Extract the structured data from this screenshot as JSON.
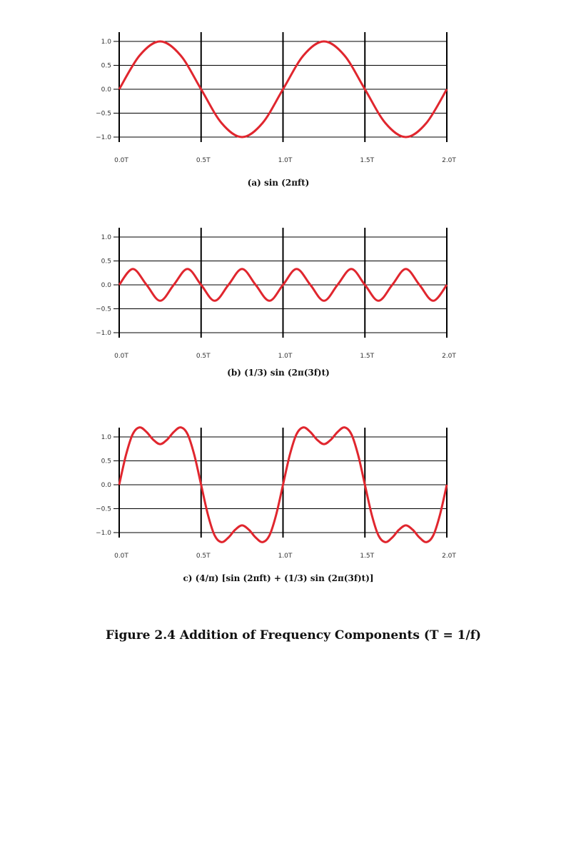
{
  "colors": {
    "curve": "#e0262e",
    "grid": "#000000"
  },
  "figure_title": "Figure 2.4 Addition of Frequency Components (T = 1/f)",
  "chart_data": [
    {
      "type": "line",
      "name": "panel-a",
      "caption": "(a) sin (2πft)",
      "xlim": [
        0,
        2
      ],
      "ylim": [
        -1,
        1
      ],
      "x_ticks": [
        0,
        0.5,
        1,
        1.5,
        2
      ],
      "x_tick_labels": [
        "0.0T",
        "0.5T",
        "1.0T",
        "1.5T",
        "2.0T"
      ],
      "y_ticks": [
        1,
        0.5,
        0,
        -0.5,
        -1
      ],
      "y_tick_labels": [
        "1.0",
        "0.5",
        "0.0",
        "−0.5",
        "−1.0"
      ],
      "grid": true,
      "series": [
        {
          "x": [
            0,
            0.125,
            0.25,
            0.375,
            0.5,
            0.625,
            0.75,
            0.875,
            1,
            1.125,
            1.25,
            1.375,
            1.5,
            1.625,
            1.75,
            1.875,
            2
          ],
          "y": [
            0,
            0.707,
            1,
            0.707,
            0,
            -0.707,
            -1,
            -0.707,
            0,
            0.707,
            1,
            0.707,
            0,
            -0.707,
            -1,
            -0.707,
            0
          ]
        }
      ]
    },
    {
      "type": "line",
      "name": "panel-b",
      "caption": "(b) (1/3) sin (2π(3f)t)",
      "xlim": [
        0,
        2
      ],
      "ylim": [
        -1,
        1
      ],
      "x_ticks": [
        0,
        0.5,
        1,
        1.5,
        2
      ],
      "x_tick_labels": [
        "0.0T",
        "0.5T",
        "1.0T",
        "1.5T",
        "2.0T"
      ],
      "y_ticks": [
        1,
        0.5,
        0,
        -0.5,
        -1
      ],
      "y_tick_labels": [
        "1.0",
        "0.5",
        "0.0",
        "−0.5",
        "−1.0"
      ],
      "grid": true,
      "series": [
        {
          "x": [
            0,
            0.083,
            0.167,
            0.25,
            0.333,
            0.417,
            0.5,
            0.583,
            0.667,
            0.75,
            0.833,
            0.917,
            1,
            1.083,
            1.167,
            1.25,
            1.333,
            1.417,
            1.5,
            1.583,
            1.667,
            1.75,
            1.833,
            1.917,
            2
          ],
          "y": [
            0,
            0.333,
            0,
            -0.333,
            0,
            0.333,
            0,
            -0.333,
            0,
            0.333,
            0,
            -0.333,
            0,
            0.333,
            0,
            -0.333,
            0,
            0.333,
            0,
            -0.333,
            0,
            0.333,
            0,
            -0.333,
            0
          ]
        }
      ]
    },
    {
      "type": "line",
      "name": "panel-c",
      "caption": "c) (4/π) [sin (2πft) + (1/3) sin (2π(3f)t)]",
      "xlim": [
        0,
        2
      ],
      "ylim": [
        -1,
        1
      ],
      "x_ticks": [
        0,
        0.5,
        1,
        1.5,
        2
      ],
      "x_tick_labels": [
        "0.0T",
        "0.5T",
        "1.0T",
        "1.5T",
        "2.0T"
      ],
      "y_ticks": [
        1,
        0.5,
        0,
        -0.5,
        -1
      ],
      "y_tick_labels": [
        "1.0",
        "0.5",
        "0.0",
        "−0.5",
        "−1.0"
      ],
      "grid": true,
      "series": [
        {
          "x": [
            0,
            0.042,
            0.083,
            0.125,
            0.167,
            0.208,
            0.25,
            0.292,
            0.333,
            0.375,
            0.417,
            0.458,
            0.5,
            0.542,
            0.583,
            0.625,
            0.667,
            0.708,
            0.75,
            0.792,
            0.833,
            0.875,
            0.917,
            0.958,
            1,
            1.042,
            1.083,
            1.125,
            1.167,
            1.208,
            1.25,
            1.292,
            1.333,
            1.375,
            1.417,
            1.458,
            1.5,
            1.542,
            1.583,
            1.625,
            1.667,
            1.708,
            1.75,
            1.792,
            1.833,
            1.875,
            1.917,
            1.958,
            2
          ],
          "y": [
            0,
            0.63,
            1.061,
            1.2,
            1.103,
            0.941,
            0.849,
            0.941,
            1.103,
            1.2,
            1.061,
            0.63,
            0,
            -0.63,
            -1.061,
            -1.2,
            -1.103,
            -0.941,
            -0.849,
            -0.941,
            -1.103,
            -1.2,
            -1.061,
            -0.63,
            0,
            0.63,
            1.061,
            1.2,
            1.103,
            0.941,
            0.849,
            0.941,
            1.103,
            1.2,
            1.061,
            0.63,
            0,
            -0.63,
            -1.061,
            -1.2,
            -1.103,
            -0.941,
            -0.849,
            -0.941,
            -1.103,
            -1.2,
            -1.061,
            -0.63,
            0
          ]
        }
      ]
    }
  ]
}
